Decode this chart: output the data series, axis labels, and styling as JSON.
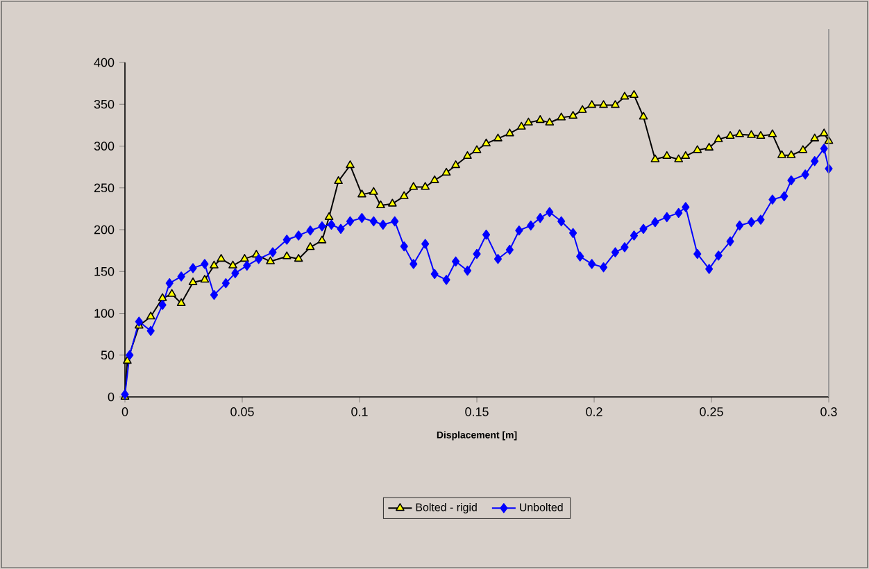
{
  "chart_data": {
    "type": "line",
    "xlabel": "Displacement [m]",
    "xlim": [
      0,
      0.3
    ],
    "ylim": [
      0,
      400
    ],
    "xticks": [
      0,
      0.05,
      0.1,
      0.15,
      0.2,
      0.25,
      0.3
    ],
    "yticks": [
      0,
      50,
      100,
      150,
      200,
      250,
      300,
      350,
      400
    ],
    "grid": false,
    "legend": "bottom",
    "series": [
      {
        "name": "Bolted - rigid",
        "color": "#000000",
        "marker": "triangle",
        "x": [
          0,
          0.001,
          0.006,
          0.011,
          0.016,
          0.02,
          0.024,
          0.029,
          0.034,
          0.038,
          0.041,
          0.046,
          0.051,
          0.056,
          0.062,
          0.069,
          0.074,
          0.079,
          0.084,
          0.087,
          0.091,
          0.096,
          0.101,
          0.106,
          0.109,
          0.114,
          0.119,
          0.123,
          0.128,
          0.132,
          0.137,
          0.141,
          0.146,
          0.15,
          0.154,
          0.159,
          0.164,
          0.169,
          0.172,
          0.177,
          0.181,
          0.186,
          0.191,
          0.195,
          0.199,
          0.204,
          0.209,
          0.213,
          0.217,
          0.221,
          0.226,
          0.231,
          0.236,
          0.239,
          0.244,
          0.249,
          0.253,
          0.258,
          0.262,
          0.267,
          0.271,
          0.276,
          0.28,
          0.284,
          0.289,
          0.294,
          0.298,
          0.3
        ],
        "values": [
          0,
          43,
          85,
          96,
          118,
          123,
          112,
          137,
          140,
          157,
          165,
          157,
          165,
          170,
          162,
          168,
          165,
          179,
          187,
          215,
          258,
          277,
          242,
          245,
          229,
          231,
          240,
          251,
          251,
          259,
          268,
          277,
          288,
          295,
          303,
          309,
          315,
          323,
          328,
          331,
          328,
          334,
          336,
          343,
          349,
          349,
          349,
          359,
          361,
          335,
          284,
          288,
          284,
          288,
          295,
          298,
          308,
          312,
          314,
          313,
          312,
          314,
          289,
          289,
          295,
          309,
          315,
          306
        ]
      },
      {
        "name": "Unbolted",
        "color": "#0000ff",
        "marker": "diamond",
        "x": [
          0,
          0.002,
          0.006,
          0.011,
          0.016,
          0.019,
          0.024,
          0.029,
          0.034,
          0.038,
          0.043,
          0.047,
          0.052,
          0.057,
          0.063,
          0.069,
          0.074,
          0.079,
          0.084,
          0.088,
          0.092,
          0.096,
          0.101,
          0.106,
          0.11,
          0.115,
          0.119,
          0.123,
          0.128,
          0.132,
          0.137,
          0.141,
          0.146,
          0.15,
          0.154,
          0.159,
          0.164,
          0.168,
          0.173,
          0.177,
          0.181,
          0.186,
          0.191,
          0.194,
          0.199,
          0.204,
          0.209,
          0.213,
          0.217,
          0.221,
          0.226,
          0.231,
          0.236,
          0.239,
          0.244,
          0.249,
          0.253,
          0.258,
          0.262,
          0.267,
          0.271,
          0.276,
          0.281,
          0.284,
          0.29,
          0.294,
          0.298,
          0.3
        ],
        "values": [
          3,
          50,
          90,
          79,
          110,
          136,
          144,
          154,
          159,
          122,
          136,
          148,
          157,
          165,
          173,
          188,
          193,
          199,
          204,
          206,
          201,
          210,
          214,
          210,
          206,
          210,
          180,
          159,
          183,
          147,
          140,
          162,
          151,
          171,
          194,
          165,
          176,
          199,
          205,
          214,
          221,
          210,
          196,
          168,
          159,
          155,
          173,
          179,
          193,
          201,
          209,
          215,
          220,
          227,
          171,
          153,
          169,
          186,
          205,
          209,
          212,
          236,
          240,
          259,
          266,
          282,
          297,
          273
        ]
      }
    ]
  }
}
